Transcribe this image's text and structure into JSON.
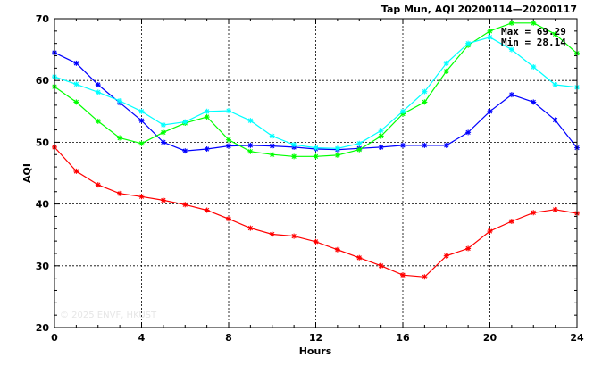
{
  "chart_data": {
    "type": "line",
    "title": "Tap Mun, AQI 20200114—20200117",
    "xlabel": "Hours",
    "ylabel": "AQI",
    "xlim": [
      0,
      24
    ],
    "ylim": [
      20,
      70
    ],
    "xticks": [
      0,
      4,
      8,
      12,
      16,
      20,
      24
    ],
    "yticks": [
      20,
      30,
      40,
      50,
      60,
      70
    ],
    "grid": true,
    "x": [
      0,
      1,
      2,
      3,
      4,
      5,
      6,
      7,
      8,
      9,
      10,
      11,
      12,
      13,
      14,
      15,
      16,
      17,
      18,
      19,
      20,
      21,
      22,
      23,
      24
    ],
    "series": [
      {
        "color": "#0000ff",
        "values": [
          64.5,
          62.8,
          59.3,
          56.4,
          53.5,
          50.0,
          48.6,
          48.9,
          49.4,
          49.5,
          49.4,
          49.2,
          48.9,
          48.8,
          49.0,
          49.2,
          49.5,
          49.5,
          49.5,
          51.6,
          55.0,
          57.7,
          56.5,
          53.6,
          49.1
        ]
      },
      {
        "color": "#00ff00",
        "values": [
          59.0,
          56.5,
          53.4,
          50.7,
          49.8,
          51.6,
          53.1,
          54.1,
          50.4,
          48.5,
          48.0,
          47.7,
          47.7,
          47.9,
          48.8,
          51.0,
          54.6,
          56.5,
          61.5,
          65.7,
          68.0,
          69.3,
          69.3,
          67.5,
          64.4
        ]
      },
      {
        "color": "#00ffff",
        "values": [
          60.6,
          59.4,
          58.1,
          56.7,
          55.0,
          52.8,
          53.3,
          55.0,
          55.1,
          53.5,
          51.0,
          49.6,
          49.1,
          49.0,
          49.8,
          51.9,
          55.0,
          58.2,
          62.8,
          66.0,
          67.0,
          65.0,
          62.2,
          59.3,
          58.9
        ]
      },
      {
        "color": "#ff0000",
        "values": [
          49.2,
          45.3,
          43.1,
          41.7,
          41.2,
          40.6,
          39.9,
          39.0,
          37.6,
          36.1,
          35.1,
          34.8,
          33.9,
          32.6,
          31.3,
          30.0,
          28.5,
          28.2,
          31.6,
          32.8,
          35.6,
          37.2,
          38.6,
          39.1,
          38.5
        ]
      }
    ],
    "annotations": {
      "max": "Max = 69.29",
      "min": "Min = 28.14"
    },
    "watermark": "© 2025  ENVF, HKUST"
  }
}
